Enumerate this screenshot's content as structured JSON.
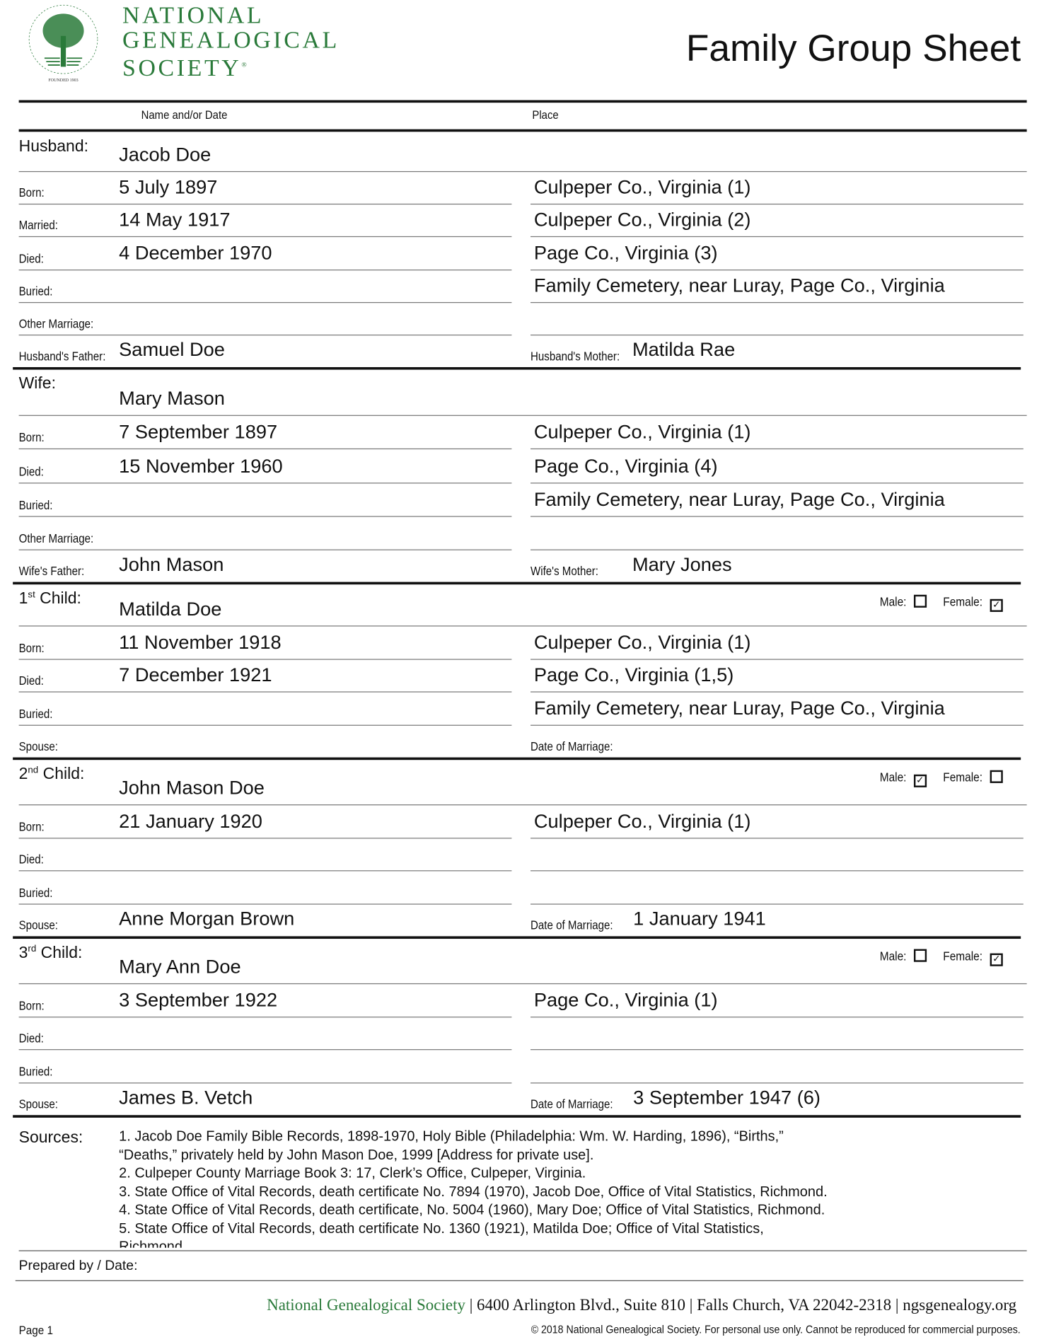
{
  "header": {
    "org_lines": [
      "NATIONAL",
      "GENEALOGICAL",
      "SOCIETY"
    ],
    "registered_mark": "®",
    "logo_ring_text": "NATIONAL GENEALOGICAL SOCIETY",
    "logo_founded": "FOUNDED 1903",
    "title": "Family Group Sheet",
    "col_name": "Name and/or Date",
    "col_place": "Place",
    "brand_color": "#2a7a3a"
  },
  "sections": [
    {
      "label": "Husband:",
      "label_sup": "",
      "label_rest": "",
      "name": "Jacob Doe",
      "rows": [
        {
          "label": "Born:",
          "date": "5 July 1897",
          "place": "Culpeper Co., Virginia (1)"
        },
        {
          "label": "Married:",
          "date": "14 May 1917",
          "place": "Culpeper Co., Virginia (2)"
        },
        {
          "label": "Died:",
          "date": "4 December 1970",
          "place": "Page Co., Virginia (3)"
        },
        {
          "label": "Buried:",
          "date": "",
          "place": "Family Cemetery, near Luray, Page Co., Virginia"
        },
        {
          "label": "Other Marriage:",
          "date": "",
          "place": ""
        }
      ],
      "last": {
        "left_label": "Husband's Father:",
        "left_value": "Samuel Doe",
        "right_label": "Husband's Mother:",
        "right_value": "Matilda Rae"
      }
    },
    {
      "label": "Wife:",
      "label_sup": "",
      "label_rest": "",
      "name": "Mary Mason",
      "rows": [
        {
          "label": "Born:",
          "date": "7 September 1897",
          "place": "Culpeper Co., Virginia (1)"
        },
        {
          "label": "Died:",
          "date": "15 November 1960",
          "place": "Page Co., Virginia (4)"
        },
        {
          "label": "Buried:",
          "date": "",
          "place": "Family Cemetery, near Luray, Page Co., Virginia"
        },
        {
          "label": "Other Marriage:",
          "date": "",
          "place": ""
        }
      ],
      "last": {
        "left_label": "Wife's Father:",
        "left_value": "John Mason",
        "right_label": "Wife's Mother:",
        "right_value": "Mary Jones"
      }
    },
    {
      "label": "1",
      "label_sup": "st",
      "label_rest": " Child:",
      "name": "Matilda Doe",
      "sex": {
        "male_label": "Male:",
        "male": false,
        "female_label": "Female:",
        "female": true
      },
      "rows": [
        {
          "label": "Born:",
          "date": "11 November 1918",
          "place": "Culpeper Co., Virginia (1)"
        },
        {
          "label": "Died:",
          "date": "7 December 1921",
          "place": "Page Co., Virginia (1,5)"
        },
        {
          "label": "Buried:",
          "date": "",
          "place": "Family Cemetery, near Luray, Page Co., Virginia"
        }
      ],
      "last": {
        "left_label": "Spouse:",
        "left_value": "",
        "right_label": "Date of Marriage:",
        "right_value": ""
      }
    },
    {
      "label": "2",
      "label_sup": "nd",
      "label_rest": " Child:",
      "name": "John Mason Doe",
      "sex": {
        "male_label": "Male:",
        "male": true,
        "female_label": "Female:",
        "female": false
      },
      "rows": [
        {
          "label": "Born:",
          "date": "21 January 1920",
          "place": "Culpeper Co., Virginia (1)"
        },
        {
          "label": "Died:",
          "date": "",
          "place": ""
        },
        {
          "label": "Buried:",
          "date": "",
          "place": ""
        }
      ],
      "last": {
        "left_label": "Spouse:",
        "left_value": "Anne Morgan Brown",
        "right_label": "Date of Marriage:",
        "right_value": "1 January 1941"
      }
    },
    {
      "label": "3",
      "label_sup": "rd",
      "label_rest": " Child:",
      "name": "Mary Ann Doe",
      "sex": {
        "male_label": "Male:",
        "male": false,
        "female_label": "Female:",
        "female": true
      },
      "rows": [
        {
          "label": "Born:",
          "date": "3 September 1922",
          "place": "Page Co., Virginia (1)"
        },
        {
          "label": "Died:",
          "date": "",
          "place": ""
        },
        {
          "label": "Buried:",
          "date": "",
          "place": ""
        }
      ],
      "last": {
        "left_label": "Spouse:",
        "left_value": "James B. Vetch",
        "right_label": "Date of Marriage:",
        "right_value": "3 September 1947 (6)"
      }
    }
  ],
  "sources": {
    "label": "Sources:",
    "lines": [
      "1. Jacob Doe Family Bible Records, 1898-1970, Holy Bible (Philadelphia: Wm. W. Harding, 1896), “Births,”",
      "“Deaths,” privately held by John Mason Doe, 1999 [Address for private use].",
      "2. Culpeper County Marriage Book 3: 17, Clerk’s Office, Culpeper, Virginia.",
      "3. State Office of Vital Records, death certificate No. 7894 (1970), Jacob Doe, Office of Vital Statistics, Richmond.",
      "4. State Office of Vital Records, death certificate, No. 5004 (1960), Mary Doe; Office of Vital Statistics, Richmond.",
      "5. State Office of Vital Records, death certificate No. 1360 (1921), Matilda Doe; Office of Vital Statistics,",
      "Richmond."
    ]
  },
  "prepared_by_label": "Prepared by / Date:",
  "footer": {
    "org": "National Genealogical Society",
    "address": "6400 Arlington Blvd., Suite 810",
    "city": "Falls Church, VA 22042-2318",
    "website": "ngsgenealogy.org",
    "page": "Page 1",
    "copyright": "© 2018 National Genealogical Society. For personal use only. Cannot be reproduced for commercial purposes."
  }
}
